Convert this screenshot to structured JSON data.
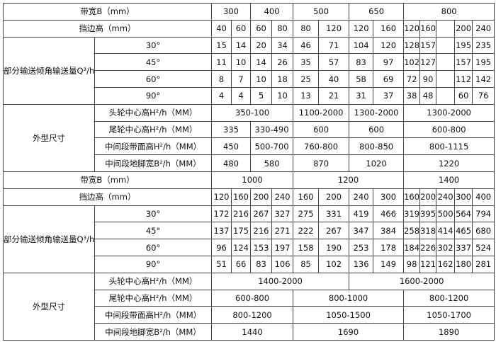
{
  "rows": [
    {
      "cells": [
        {
          "t": "带宽B（mm）",
          "cs": 2
        },
        {
          "t": "300",
          "cs": 2
        },
        {
          "t": "400",
          "cs": 2
        },
        {
          "t": "500",
          "cs": 2
        },
        {
          "t": "650",
          "cs": 2
        },
        {
          "t": "800",
          "cs": 5
        }
      ]
    },
    {
      "cells": [
        {
          "t": "挡边高（mm）",
          "cs": 2
        },
        {
          "t": "40"
        },
        {
          "t": "60"
        },
        {
          "t": "60"
        },
        {
          "t": "80"
        },
        {
          "t": "80"
        },
        {
          "t": "120"
        },
        {
          "t": "120"
        },
        {
          "t": "160"
        },
        {
          "t": "120"
        },
        {
          "t": "160"
        },
        {
          "t": ""
        },
        {
          "t": "200"
        },
        {
          "t": "240"
        }
      ]
    },
    {
      "cells": [
        {
          "t": "部分输送倾角输送量Q³/h",
          "rs": 4
        },
        {
          "t": "30°"
        },
        {
          "t": "15"
        },
        {
          "t": "14"
        },
        {
          "t": "20"
        },
        {
          "t": "34"
        },
        {
          "t": "46"
        },
        {
          "t": "71"
        },
        {
          "t": "104"
        },
        {
          "t": "120"
        },
        {
          "t": "128"
        },
        {
          "t": "157"
        },
        {
          "t": ""
        },
        {
          "t": "195"
        },
        {
          "t": "235"
        }
      ]
    },
    {
      "cells": [
        {
          "t": "45°"
        },
        {
          "t": "11"
        },
        {
          "t": "10"
        },
        {
          "t": "14"
        },
        {
          "t": "26"
        },
        {
          "t": "35"
        },
        {
          "t": "57"
        },
        {
          "t": "83"
        },
        {
          "t": "97"
        },
        {
          "t": "102"
        },
        {
          "t": "127"
        },
        {
          "t": ""
        },
        {
          "t": "157"
        },
        {
          "t": "195"
        }
      ]
    },
    {
      "cells": [
        {
          "t": "60°"
        },
        {
          "t": "8"
        },
        {
          "t": "7"
        },
        {
          "t": "10"
        },
        {
          "t": "18"
        },
        {
          "t": "25"
        },
        {
          "t": "40"
        },
        {
          "t": "58"
        },
        {
          "t": "69"
        },
        {
          "t": "72"
        },
        {
          "t": "90"
        },
        {
          "t": ""
        },
        {
          "t": "112"
        },
        {
          "t": "142"
        }
      ]
    },
    {
      "cells": [
        {
          "t": "90°"
        },
        {
          "t": "4"
        },
        {
          "t": "4"
        },
        {
          "t": "5"
        },
        {
          "t": "10"
        },
        {
          "t": "13"
        },
        {
          "t": "21"
        },
        {
          "t": "31"
        },
        {
          "t": "37"
        },
        {
          "t": "38"
        },
        {
          "t": "48"
        },
        {
          "t": ""
        },
        {
          "t": "60"
        },
        {
          "t": "76"
        }
      ]
    },
    {
      "cells": [
        {
          "t": "外型尺寸",
          "rs": 4
        },
        {
          "t": "头轮中心高H²/h（MM）"
        },
        {
          "t": "350-100",
          "cs": 4
        },
        {
          "t": "1100-2000",
          "cs": 2
        },
        {
          "t": "1300-2000",
          "cs": 2
        },
        {
          "t": "1300-2000",
          "cs": 5
        }
      ]
    },
    {
      "cells": [
        {
          "t": "尾轮中心高H²/h（MM）"
        },
        {
          "t": "335",
          "cs": 2
        },
        {
          "t": "330-490",
          "cs": 2
        },
        {
          "t": "600",
          "cs": 2
        },
        {
          "t": "600",
          "cs": 2
        },
        {
          "t": "600-800",
          "cs": 5
        }
      ]
    },
    {
      "cells": [
        {
          "t": "中间段带面高H²/h（MM）"
        },
        {
          "t": "450",
          "cs": 2
        },
        {
          "t": "500-700",
          "cs": 2
        },
        {
          "t": "760-800",
          "cs": 2
        },
        {
          "t": "800-850",
          "cs": 2
        },
        {
          "t": "800-1115",
          "cs": 5
        }
      ]
    },
    {
      "cells": [
        {
          "t": "中间段地脚宽B²/h（MM）"
        },
        {
          "t": "480",
          "cs": 2
        },
        {
          "t": "580",
          "cs": 2
        },
        {
          "t": "870",
          "cs": 2
        },
        {
          "t": "1020",
          "cs": 2
        },
        {
          "t": "1220",
          "cs": 5
        }
      ]
    },
    {
      "cells": [
        {
          "t": "带宽B（mm）",
          "cs": 2
        },
        {
          "t": "1000",
          "cs": 4
        },
        {
          "t": "1200",
          "cs": 4
        },
        {
          "t": "1400",
          "cs": 5
        }
      ]
    },
    {
      "cells": [
        {
          "t": "挡边高（mm）",
          "cs": 2
        },
        {
          "t": "120"
        },
        {
          "t": "160"
        },
        {
          "t": "200"
        },
        {
          "t": "240"
        },
        {
          "t": "160"
        },
        {
          "t": "200"
        },
        {
          "t": "240"
        },
        {
          "t": "300"
        },
        {
          "t": "160"
        },
        {
          "t": "200"
        },
        {
          "t": "240"
        },
        {
          "t": "300"
        },
        {
          "t": "400"
        }
      ]
    },
    {
      "cells": [
        {
          "t": "部分输送倾角输送量Q³/h",
          "rs": 4
        },
        {
          "t": "30°"
        },
        {
          "t": "172"
        },
        {
          "t": "216"
        },
        {
          "t": "267"
        },
        {
          "t": "327"
        },
        {
          "t": "275"
        },
        {
          "t": "331"
        },
        {
          "t": "419"
        },
        {
          "t": "466"
        },
        {
          "t": "319"
        },
        {
          "t": "395"
        },
        {
          "t": "500"
        },
        {
          "t": "564"
        },
        {
          "t": "794"
        }
      ]
    },
    {
      "cells": [
        {
          "t": "45°"
        },
        {
          "t": "137"
        },
        {
          "t": "175"
        },
        {
          "t": "216"
        },
        {
          "t": "271"
        },
        {
          "t": "222"
        },
        {
          "t": "267"
        },
        {
          "t": "347"
        },
        {
          "t": "384"
        },
        {
          "t": "258"
        },
        {
          "t": "318"
        },
        {
          "t": "414"
        },
        {
          "t": "465"
        },
        {
          "t": "680"
        }
      ]
    },
    {
      "cells": [
        {
          "t": "60°"
        },
        {
          "t": "96"
        },
        {
          "t": "124"
        },
        {
          "t": "153"
        },
        {
          "t": "197"
        },
        {
          "t": "158"
        },
        {
          "t": "190"
        },
        {
          "t": "253"
        },
        {
          "t": "178"
        },
        {
          "t": "184"
        },
        {
          "t": "226"
        },
        {
          "t": "302"
        },
        {
          "t": "337"
        },
        {
          "t": "524"
        }
      ]
    },
    {
      "cells": [
        {
          "t": "90°"
        },
        {
          "t": "51"
        },
        {
          "t": "66"
        },
        {
          "t": "83"
        },
        {
          "t": "106"
        },
        {
          "t": "85"
        },
        {
          "t": "102"
        },
        {
          "t": "136"
        },
        {
          "t": "149"
        },
        {
          "t": "98"
        },
        {
          "t": "121"
        },
        {
          "t": "162"
        },
        {
          "t": "180"
        },
        {
          "t": "281"
        }
      ]
    },
    {
      "cells": [
        {
          "t": "外型尺寸",
          "rs": 4
        },
        {
          "t": "头轮中心高H²/h（MM）"
        },
        {
          "t": "1400-2000",
          "cs": 6
        },
        {
          "t": "1600-2000",
          "cs": 7
        }
      ]
    },
    {
      "cells": [
        {
          "t": "尾轮中心高H²/h（MM）"
        },
        {
          "t": "600-800",
          "cs": 4
        },
        {
          "t": "800-1000",
          "cs": 4
        },
        {
          "t": "800-1200",
          "cs": 5
        }
      ]
    },
    {
      "cells": [
        {
          "t": "中间段带面高H²/h（MM）"
        },
        {
          "t": "800-1200",
          "cs": 4
        },
        {
          "t": "1050-1500",
          "cs": 4
        },
        {
          "t": "1050-1700",
          "cs": 5
        }
      ]
    },
    {
      "cells": [
        {
          "t": "中间段地脚宽B²/h（MM）"
        },
        {
          "t": "1440",
          "cs": 4
        },
        {
          "t": "1690",
          "cs": 4
        },
        {
          "t": "1890",
          "cs": 5
        }
      ]
    }
  ]
}
